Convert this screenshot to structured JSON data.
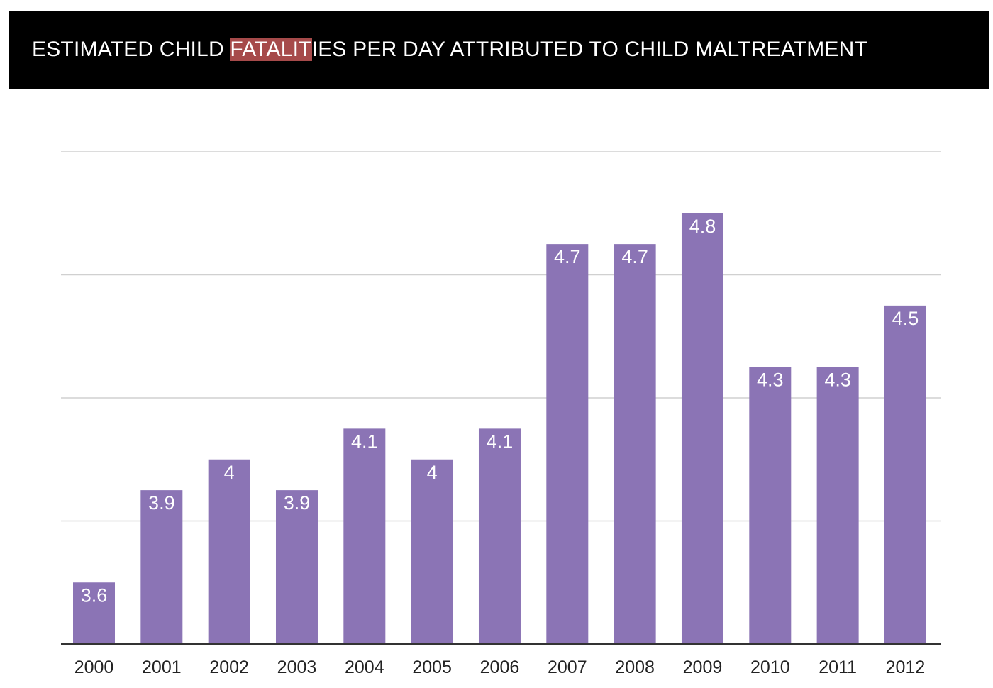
{
  "title": {
    "prefix": "ESTIMATED CHILD ",
    "highlight": "FATALIT",
    "suffix": "IES PER DAY ATTRIBUTED TO CHILD MALTREATMENT"
  },
  "colors": {
    "bar": "#8b74b5",
    "highlight": "#a64a4a",
    "title_background": "#000000",
    "grid": "#d0d0d0",
    "axis": "#333333"
  },
  "chart_data": {
    "type": "bar",
    "title": "ESTIMATED CHILD FATALITIES PER DAY ATTRIBUTED TO CHILD MALTREATMENT",
    "categories": [
      "2000",
      "2001",
      "2002",
      "2003",
      "2004",
      "2005",
      "2006",
      "2007",
      "2008",
      "2009",
      "2010",
      "2011",
      "2012"
    ],
    "values": [
      3.6,
      3.9,
      4,
      3.9,
      4.1,
      4,
      4.1,
      4.7,
      4.7,
      4.8,
      4.3,
      4.3,
      4.5
    ],
    "data_labels": [
      "3.6",
      "3.9",
      "4",
      "3.9",
      "4.1",
      "4",
      "4.1",
      "4.7",
      "4.7",
      "4.8",
      "4.3",
      "4.3",
      "4.5"
    ],
    "xlabel": "",
    "ylabel": "",
    "ylim": [
      3.4,
      5.0
    ],
    "gridlines": [
      3.8,
      4.2,
      4.6,
      5.0
    ],
    "grid": true,
    "legend": "none"
  }
}
